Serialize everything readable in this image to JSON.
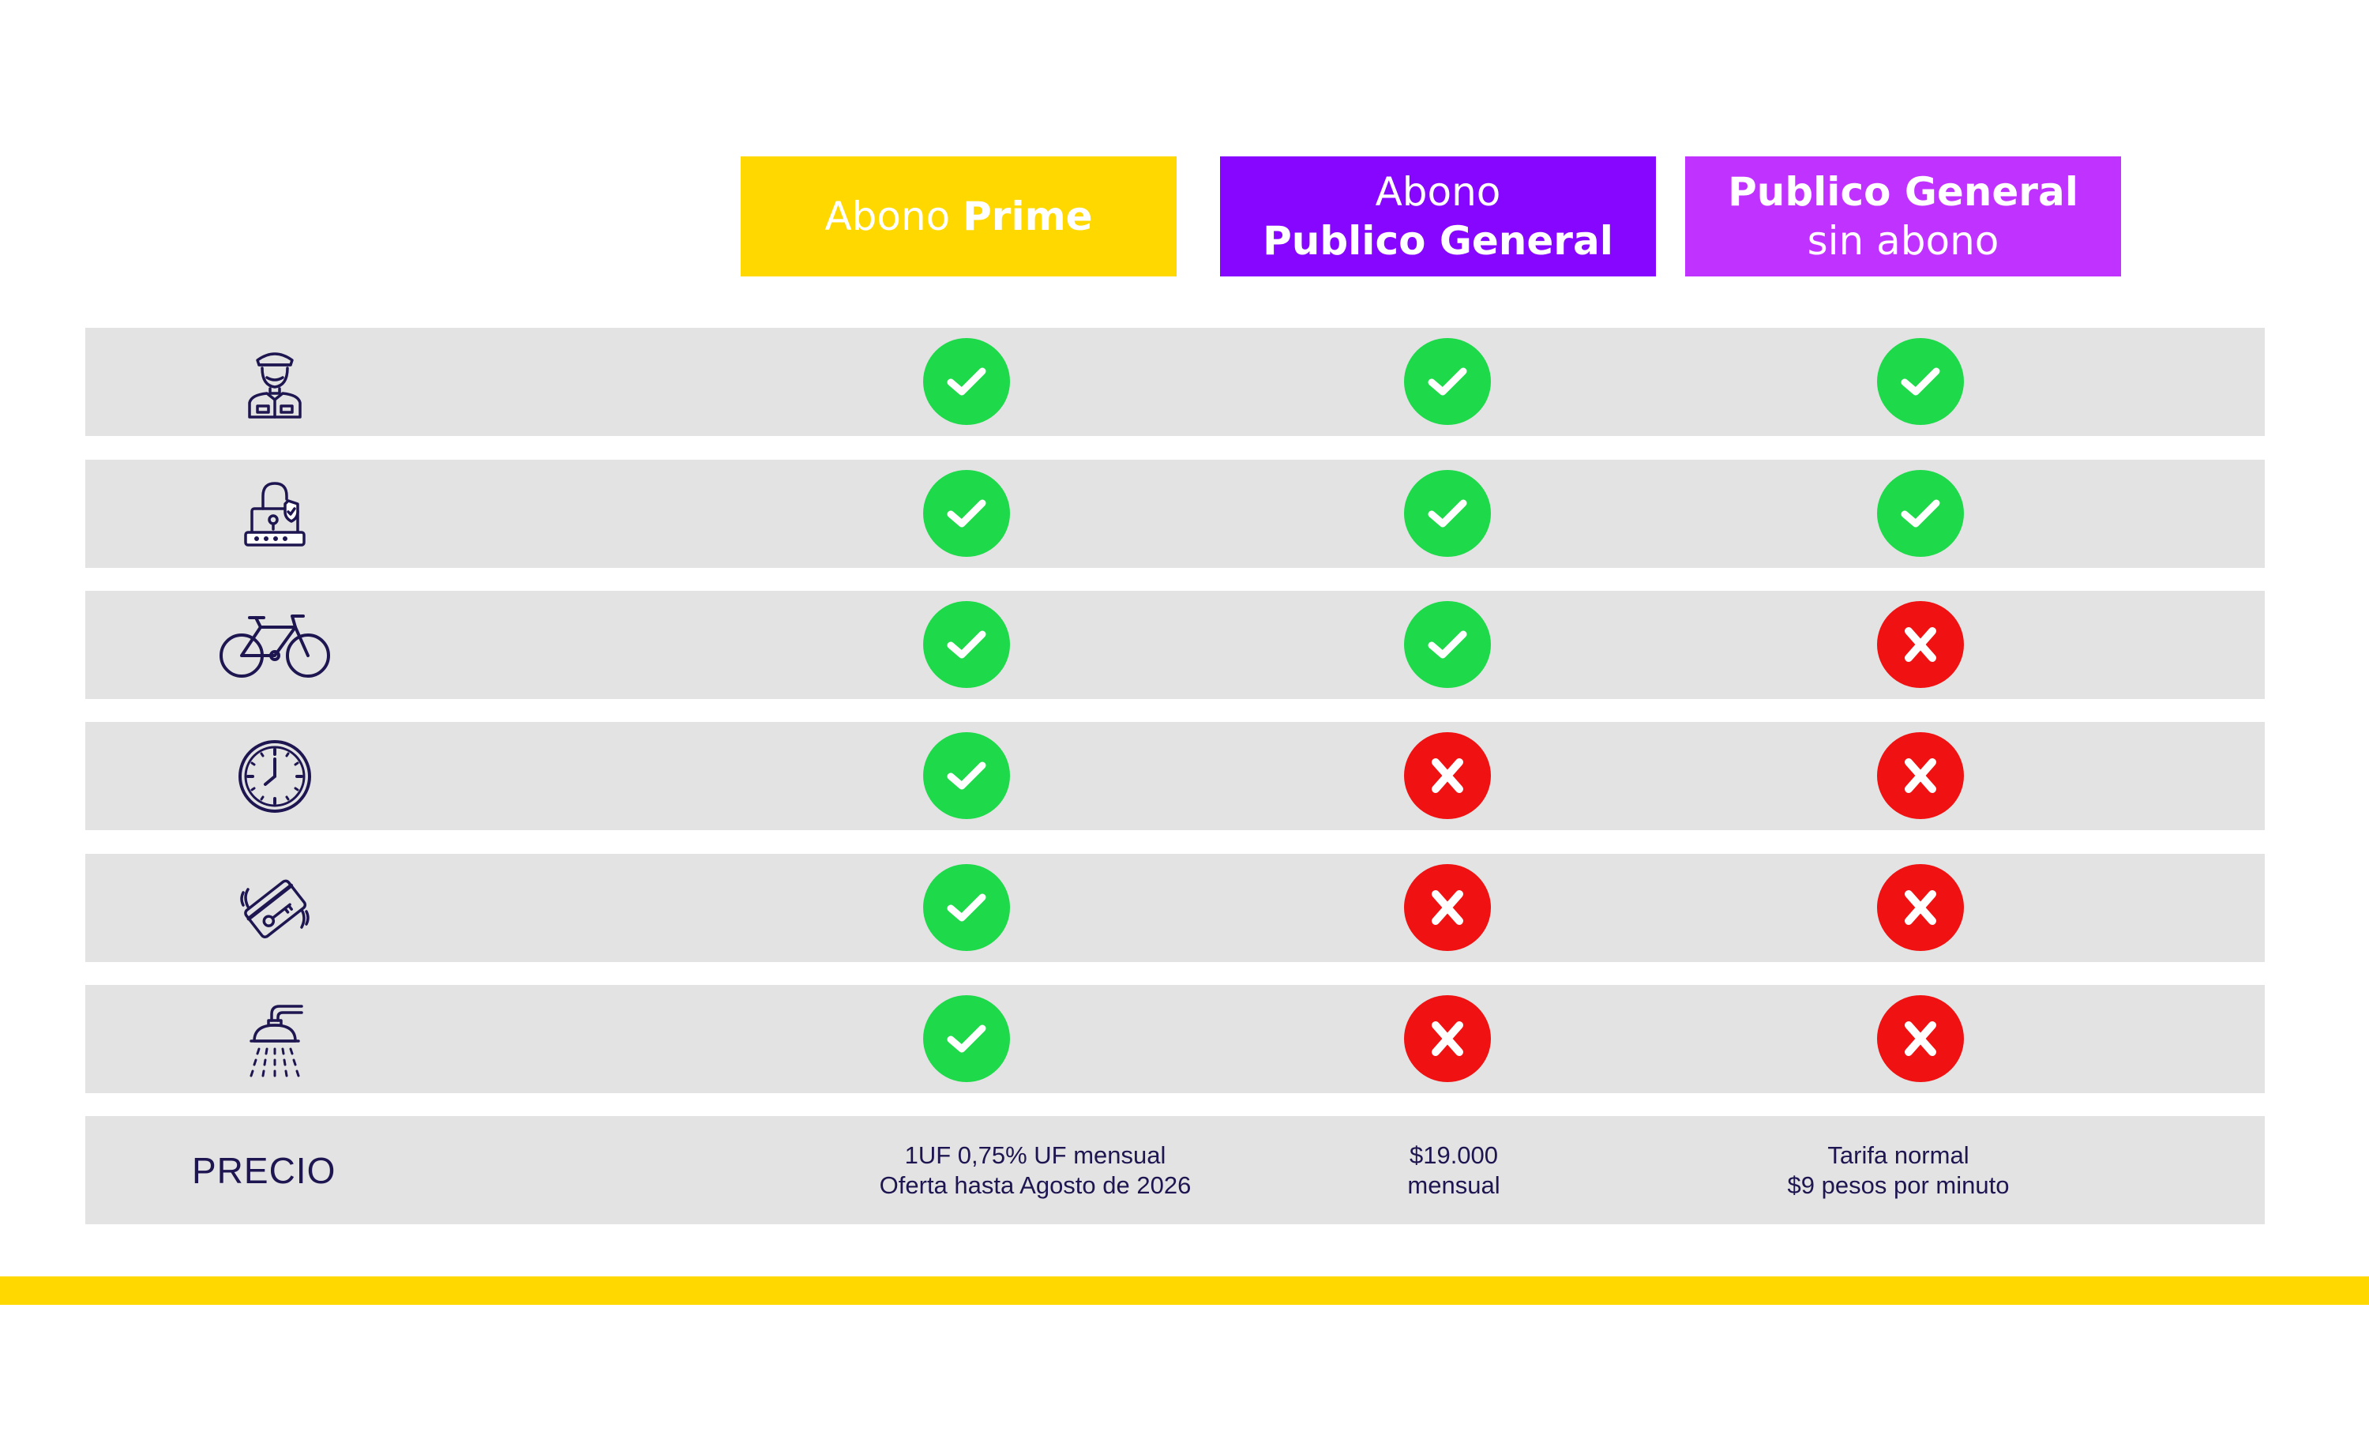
{
  "colors": {
    "prime": "#ffd800",
    "general": "#8606ff",
    "sin_abono": "#c032ff",
    "yes": "#1ed94a",
    "no": "#f01212",
    "row_bg": "#e3e3e3",
    "text": "#1e1650"
  },
  "headers": [
    {
      "line1": "Abono",
      "line1_bold": "Prime",
      "line2": "",
      "line2_bold": ""
    },
    {
      "line1": "Abono",
      "line1_bold": "",
      "line2": "",
      "line2_bold": "Publico General"
    },
    {
      "line1": "",
      "line1_bold": "Publico General",
      "line2": "sin abono",
      "line2_bold": ""
    }
  ],
  "features": [
    {
      "icon": "guard-icon",
      "values": [
        true,
        true,
        true
      ]
    },
    {
      "icon": "padlock-icon",
      "values": [
        true,
        true,
        true
      ]
    },
    {
      "icon": "bicycle-icon",
      "values": [
        true,
        true,
        false
      ]
    },
    {
      "icon": "clock-icon",
      "values": [
        true,
        false,
        false
      ]
    },
    {
      "icon": "key-card-icon",
      "values": [
        true,
        false,
        false
      ]
    },
    {
      "icon": "shower-icon",
      "values": [
        true,
        false,
        false
      ]
    }
  ],
  "price": {
    "label": "PRECIO",
    "prime_line1": "1UF 0,75% UF mensual",
    "prime_line2": "Oferta hasta Agosto de 2026",
    "general_line1": "$19.000",
    "general_line2": "mensual",
    "sin_abono_line1": "Tarifa normal",
    "sin_abono_line2": "$9 pesos por minuto"
  }
}
